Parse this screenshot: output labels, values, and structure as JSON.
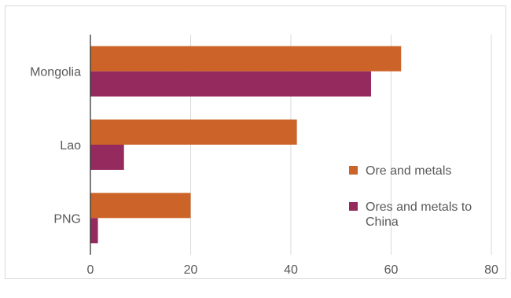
{
  "chart_data": {
    "type": "bar",
    "orientation": "horizontal",
    "title": "",
    "xlabel": "",
    "ylabel": "",
    "categories": [
      "Mongolia",
      "Lao",
      "PNG"
    ],
    "series": [
      {
        "name": "Ore and metals",
        "color": "#cc6328",
        "values": [
          62,
          41.2,
          20
        ]
      },
      {
        "name": "Ores and metals to China",
        "color": "#952a5f",
        "values": [
          56,
          6.7,
          1.5
        ]
      }
    ],
    "xlim": [
      0,
      80
    ],
    "xticks": [
      "0",
      "20",
      "40",
      "60",
      "80"
    ],
    "grid": "vertical",
    "legend_position": "right"
  }
}
